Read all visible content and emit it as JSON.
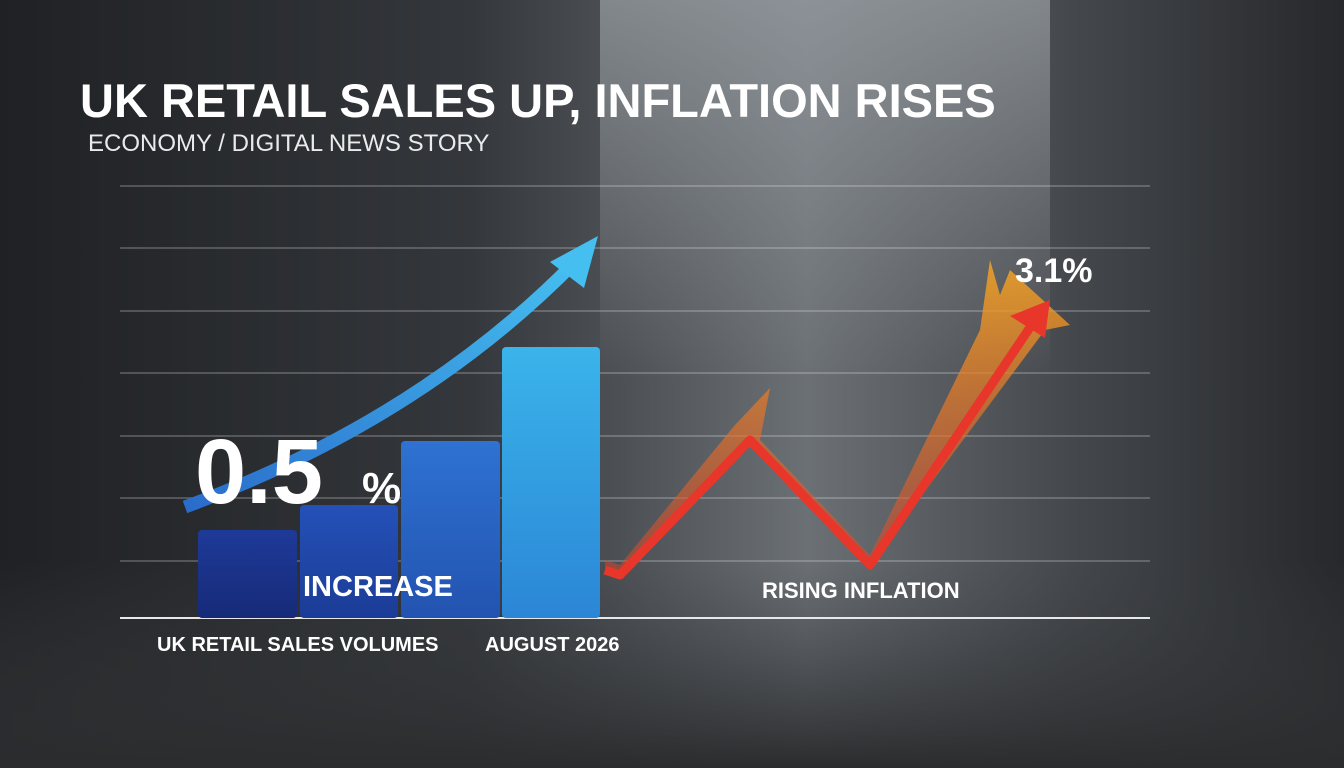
{
  "header": {
    "title": "UK RETAIL SALES UP, INFLATION RISES",
    "subtitle": "ECONOMY / DIGITAL NEWS STORY"
  },
  "retail": {
    "figure": "0.5",
    "figure_unit": "%",
    "label": "INCREASE",
    "caption": "UK RETAIL SALES VOLUMES",
    "date": "AUGUST 2026"
  },
  "inflation": {
    "figure": "3.1%",
    "label": "RISING INFLATION"
  }
}
